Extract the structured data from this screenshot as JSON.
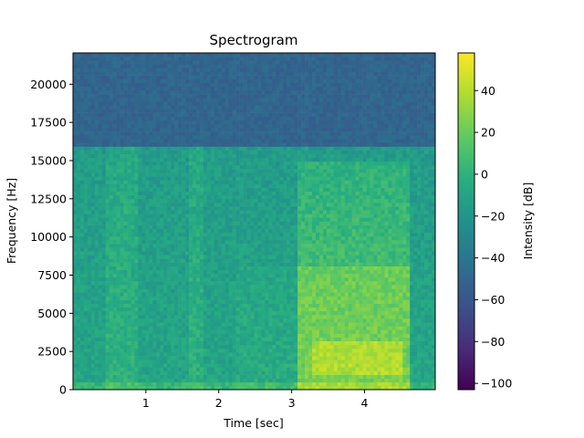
{
  "chart_data": {
    "type": "heatmap",
    "title": "Spectrogram",
    "xlabel": "Time [sec]",
    "ylabel": "Frequency [Hz]",
    "xlim": [
      0.0,
      4.97
    ],
    "ylim": [
      0,
      22050
    ],
    "x_ticks": [
      1,
      2,
      3,
      4
    ],
    "x_tick_labels": [
      "1",
      "2",
      "3",
      "4"
    ],
    "y_ticks": [
      0,
      2500,
      5000,
      7500,
      10000,
      12500,
      15000,
      17500,
      20000
    ],
    "y_tick_labels": [
      "0",
      "2500",
      "5000",
      "7500",
      "10000",
      "12500",
      "15000",
      "17500",
      "20000"
    ],
    "colormap": "viridis",
    "colorbar": {
      "label": "Intensity [dB]",
      "range": [
        -103,
        58
      ],
      "ticks": [
        -100,
        -80,
        -60,
        -40,
        -20,
        0,
        20,
        40
      ],
      "tick_labels": [
        "−100",
        "−80",
        "−60",
        "−40",
        "−20",
        "0",
        "20",
        "40"
      ]
    },
    "approx_intensity_regions": [
      {
        "time_range": [
          0.0,
          4.97
        ],
        "freq_range": [
          16000,
          22050
        ],
        "intensity_db": -50
      },
      {
        "time_range": [
          0.0,
          3.1
        ],
        "freq_range": [
          0,
          16000
        ],
        "intensity_db": -5
      },
      {
        "time_range": [
          3.1,
          4.6
        ],
        "freq_range": [
          0,
          8000
        ],
        "intensity_db": 30
      },
      {
        "time_range": [
          3.1,
          4.6
        ],
        "freq_range": [
          8000,
          15000
        ],
        "intensity_db": 10
      },
      {
        "time_range": [
          3.3,
          4.5
        ],
        "freq_range": [
          1000,
          3000
        ],
        "intensity_db": 45
      }
    ]
  }
}
